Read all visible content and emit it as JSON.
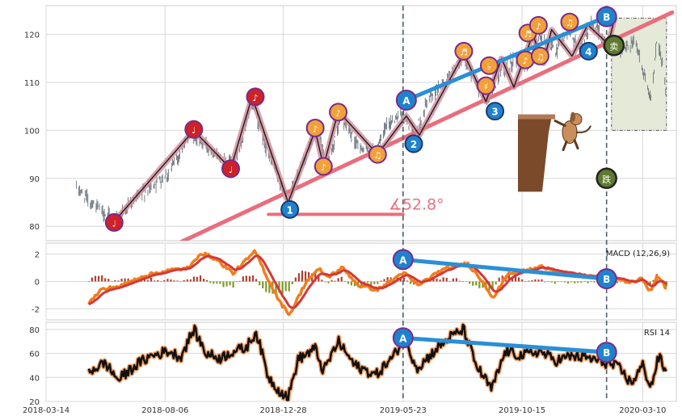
{
  "chart_data": [
    {
      "type": "line",
      "panel": "price",
      "subtype": "ohlc-bars",
      "ylim": [
        77,
        126
      ],
      "xlim": [
        "2018-03-14",
        "2020-04-20"
      ],
      "yticks": [
        80,
        90,
        100,
        110,
        120
      ],
      "xticks": [
        "2018-03-14",
        "2018-08-06",
        "2018-12-28",
        "2019-05-23",
        "2019-10-15",
        "2020-03-10"
      ],
      "price_anchors": [
        [
          "2018-04-20",
          88
        ],
        [
          "2018-05-15",
          84
        ],
        [
          "2018-06-05",
          81
        ],
        [
          "2018-07-10",
          87
        ],
        [
          "2018-08-10",
          91
        ],
        [
          "2018-09-05",
          99
        ],
        [
          "2018-09-25",
          97
        ],
        [
          "2018-10-20",
          93
        ],
        [
          "2018-11-05",
          96
        ],
        [
          "2018-11-20",
          106
        ],
        [
          "2018-12-10",
          95
        ],
        [
          "2019-01-03",
          85
        ],
        [
          "2019-01-20",
          93
        ],
        [
          "2019-02-08",
          100
        ],
        [
          "2019-02-20",
          92
        ],
        [
          "2019-03-08",
          103
        ],
        [
          "2019-03-28",
          97
        ],
        [
          "2019-04-18",
          95
        ],
        [
          "2019-05-03",
          101
        ],
        [
          "2019-05-23",
          104
        ],
        [
          "2019-06-05",
          99
        ],
        [
          "2019-06-25",
          107
        ],
        [
          "2019-07-15",
          111
        ],
        [
          "2019-08-05",
          115
        ],
        [
          "2019-08-20",
          110
        ],
        [
          "2019-09-03",
          106
        ],
        [
          "2019-09-18",
          112
        ],
        [
          "2019-10-08",
          115
        ],
        [
          "2019-10-22",
          113
        ],
        [
          "2019-11-06",
          120
        ],
        [
          "2019-11-26",
          116
        ],
        [
          "2019-12-10",
          121
        ],
        [
          "2019-12-24",
          117
        ],
        [
          "2020-01-08",
          122
        ],
        [
          "2020-01-28",
          118
        ],
        [
          "2020-02-18",
          117
        ],
        [
          "2020-03-01",
          119
        ],
        [
          "2020-03-12",
          111
        ],
        [
          "2020-03-20",
          106
        ],
        [
          "2020-03-28",
          120
        ],
        [
          "2020-04-08",
          108
        ]
      ],
      "zigzag": [
        [
          "2018-06-05",
          81
        ],
        [
          "2018-09-10",
          100
        ],
        [
          "2018-10-25",
          92
        ],
        [
          "2018-11-20",
          107
        ],
        [
          "2019-01-03",
          85
        ],
        [
          "2019-02-05",
          100
        ],
        [
          "2019-02-15",
          92.5
        ],
        [
          "2019-03-05",
          104
        ],
        [
          "2019-04-22",
          95
        ],
        [
          "2019-05-27",
          103
        ],
        [
          "2019-06-12",
          99
        ],
        [
          "2019-08-05",
          116
        ],
        [
          "2019-09-01",
          106
        ],
        [
          "2019-09-20",
          115
        ],
        [
          "2019-10-05",
          109
        ],
        [
          "2019-10-28",
          120
        ],
        [
          "2019-11-10",
          114
        ],
        [
          "2019-11-20",
          121
        ],
        [
          "2019-12-15",
          115.5
        ],
        [
          "2020-01-03",
          122
        ],
        [
          "2020-01-28",
          118
        ],
        [
          "2020-02-05",
          123.5
        ]
      ],
      "markers": [
        {
          "date": "2018-06-05",
          "price": 80.8,
          "glyph": "♩",
          "color": "#cc2228"
        },
        {
          "date": "2018-09-10",
          "price": 100.2,
          "glyph": "♩",
          "color": "#cc2228"
        },
        {
          "date": "2018-10-25",
          "price": 92.0,
          "glyph": "♩",
          "color": "#cc2228"
        },
        {
          "date": "2018-11-24",
          "price": 107.0,
          "glyph": "♪",
          "color": "#cc2228"
        },
        {
          "date": "2019-02-05",
          "price": 100.5,
          "glyph": "♪",
          "color": "#f2a03a"
        },
        {
          "date": "2019-02-15",
          "price": 92.5,
          "glyph": "♪",
          "color": "#f2a03a"
        },
        {
          "date": "2019-03-05",
          "price": 103.8,
          "glyph": "♪",
          "color": "#f2a03a"
        },
        {
          "date": "2019-04-22",
          "price": 95.0,
          "glyph": "♫",
          "color": "#f2a03a"
        },
        {
          "date": "2019-08-05",
          "price": 116.5,
          "glyph": "♬",
          "color": "#f2a03a"
        },
        {
          "date": "2019-09-01",
          "price": 109.3,
          "glyph": "♯",
          "color": "#f2a03a"
        },
        {
          "date": "2019-09-05",
          "price": 113.5,
          "glyph": "♭",
          "color": "#f2a03a"
        },
        {
          "date": "2019-10-19",
          "price": 114.7,
          "glyph": "♪",
          "color": "#f2a03a"
        },
        {
          "date": "2019-10-22",
          "price": 120.3,
          "glyph": "♬",
          "color": "#f2a03a"
        },
        {
          "date": "2019-11-04",
          "price": 121.9,
          "glyph": "♪",
          "color": "#f2a03a"
        },
        {
          "date": "2019-11-06",
          "price": 115.5,
          "glyph": "♫",
          "color": "#f2a03a"
        },
        {
          "date": "2019-12-12",
          "price": 122.6,
          "glyph": "♫",
          "color": "#f2a03a"
        }
      ],
      "numbered_points": [
        {
          "label": "1",
          "date": "2019-01-05",
          "price": 83.5
        },
        {
          "label": "2",
          "date": "2019-06-05",
          "price": 97.2
        },
        {
          "label": "3",
          "date": "2019-09-12",
          "price": 104.0
        },
        {
          "label": "4",
          "date": "2020-01-04",
          "price": 116.5
        }
      ],
      "divergence_line": {
        "a": {
          "label": "A",
          "date": "2019-05-27",
          "price": 106.3
        },
        "b": {
          "label": "B",
          "date": "2020-01-26",
          "price": 123.7
        }
      },
      "trend_line": {
        "from": [
          "2018-08-10",
          75.5
        ],
        "to": [
          "2020-04-15",
          124.6
        ]
      },
      "angle": {
        "label": "∡52.8°",
        "base_from": [
          "2018-12-10",
          82.5
        ],
        "base_to": [
          "2019-05-23",
          82.5
        ]
      },
      "vlines": [
        "2019-05-23",
        "2020-01-26"
      ],
      "box": {
        "from": [
          "2020-02-01",
          100
        ],
        "to": [
          "2020-04-08",
          123.4
        ]
      },
      "vertical_notes": [
        {
          "glyph": "卖",
          "date": "2020-02-04",
          "price": 117.7
        },
        {
          "glyph": "跌",
          "date": "2020-01-26",
          "price": 90.0
        }
      ]
    },
    {
      "type": "line",
      "panel": "macd",
      "label": "MACD (12,26,9)",
      "ylim": [
        -2.8,
        2.8
      ],
      "yticks": [
        -2,
        0,
        2
      ],
      "macd_anchors": [
        [
          "2018-05-05",
          -1.6
        ],
        [
          "2018-05-20",
          -0.6
        ],
        [
          "2018-06-15",
          -0.3
        ],
        [
          "2018-07-10",
          0.4
        ],
        [
          "2018-08-10",
          0.8
        ],
        [
          "2018-09-05",
          1.0
        ],
        [
          "2018-09-18",
          2.1
        ],
        [
          "2018-10-05",
          1.7
        ],
        [
          "2018-10-28",
          0.6
        ],
        [
          "2018-11-12",
          1.5
        ],
        [
          "2018-11-24",
          2.2
        ],
        [
          "2018-12-10",
          0.1
        ],
        [
          "2018-12-25",
          -1.6
        ],
        [
          "2019-01-05",
          -2.4
        ],
        [
          "2019-01-25",
          0.0
        ],
        [
          "2019-02-10",
          0.9
        ],
        [
          "2019-02-20",
          0.3
        ],
        [
          "2019-03-10",
          1.0
        ],
        [
          "2019-03-30",
          -0.3
        ],
        [
          "2019-04-22",
          -0.6
        ],
        [
          "2019-05-15",
          0.3
        ],
        [
          "2019-05-23",
          0.7
        ],
        [
          "2019-06-10",
          -0.3
        ],
        [
          "2019-07-05",
          0.7
        ],
        [
          "2019-07-28",
          1.2
        ],
        [
          "2019-08-10",
          1.3
        ],
        [
          "2019-08-28",
          0.0
        ],
        [
          "2019-09-10",
          -1.2
        ],
        [
          "2019-09-28",
          0.6
        ],
        [
          "2019-10-20",
          0.8
        ],
        [
          "2019-11-10",
          1.1
        ],
        [
          "2019-12-05",
          0.6
        ],
        [
          "2020-01-01",
          0.4
        ],
        [
          "2020-01-26",
          0.3
        ],
        [
          "2020-02-10",
          0.2
        ],
        [
          "2020-02-25",
          -0.1
        ],
        [
          "2020-03-10",
          0.2
        ],
        [
          "2020-03-20",
          -0.8
        ],
        [
          "2020-03-28",
          0.5
        ],
        [
          "2020-04-08",
          -0.6
        ]
      ],
      "divergence_line": {
        "a": {
          "label": "A",
          "date": "2019-05-23",
          "value": 1.6
        },
        "b": {
          "label": "B",
          "date": "2020-01-26",
          "value": 0.2
        }
      }
    },
    {
      "type": "line",
      "panel": "rsi",
      "label": "RSI 14",
      "ylim": [
        20,
        86
      ],
      "yticks": [
        20,
        40,
        60,
        80
      ],
      "rsi_anchors": [
        [
          "2018-05-05",
          45
        ],
        [
          "2018-05-25",
          52
        ],
        [
          "2018-06-10",
          38
        ],
        [
          "2018-07-01",
          50
        ],
        [
          "2018-07-20",
          58
        ],
        [
          "2018-08-10",
          62
        ],
        [
          "2018-08-25",
          57
        ],
        [
          "2018-09-10",
          80
        ],
        [
          "2018-09-25",
          60
        ],
        [
          "2018-10-12",
          56
        ],
        [
          "2018-10-28",
          62
        ],
        [
          "2018-11-12",
          64
        ],
        [
          "2018-11-25",
          78
        ],
        [
          "2018-12-10",
          40
        ],
        [
          "2018-12-22",
          30
        ],
        [
          "2019-01-03",
          23
        ],
        [
          "2019-01-15",
          55
        ],
        [
          "2019-02-05",
          64
        ],
        [
          "2019-02-15",
          45
        ],
        [
          "2019-03-05",
          70
        ],
        [
          "2019-03-25",
          50
        ],
        [
          "2019-04-20",
          42
        ],
        [
          "2019-05-12",
          58
        ],
        [
          "2019-05-23",
          72
        ],
        [
          "2019-06-10",
          48
        ],
        [
          "2019-06-30",
          62
        ],
        [
          "2019-07-20",
          74
        ],
        [
          "2019-08-05",
          80
        ],
        [
          "2019-08-20",
          50
        ],
        [
          "2019-09-08",
          30
        ],
        [
          "2019-09-25",
          62
        ],
        [
          "2019-10-15",
          58
        ],
        [
          "2019-11-05",
          62
        ],
        [
          "2019-11-25",
          54
        ],
        [
          "2019-12-15",
          58
        ],
        [
          "2020-01-05",
          56
        ],
        [
          "2020-01-26",
          52
        ],
        [
          "2020-02-10",
          48
        ],
        [
          "2020-02-25",
          35
        ],
        [
          "2020-03-10",
          50
        ],
        [
          "2020-03-20",
          32
        ],
        [
          "2020-03-30",
          58
        ],
        [
          "2020-04-08",
          42
        ]
      ],
      "divergence_line": {
        "a": {
          "label": "A",
          "date": "2019-05-23",
          "value": 73
        },
        "b": {
          "label": "B",
          "date": "2020-01-26",
          "value": 61
        }
      }
    }
  ],
  "colors": {
    "price_bar": "#5a6470",
    "zigzag_band": "#d08a98",
    "zigzag_line": "#1a1a1a",
    "trend_line": "#ea6d7c",
    "divergence_line": "#2a8fd6",
    "marker_outline": "#7a2a8a",
    "vline": "#50606a",
    "box_fill": "#e4ead7",
    "macd_line": "#f07e1c",
    "signal_line": "#d43838",
    "hist_pos": "#b04030",
    "hist_neg": "#7d9a2a",
    "rsi_line": "#111111",
    "rsi_halo": "#f5a066",
    "grid": "#d8d8d8",
    "axis": "#cccccc"
  }
}
